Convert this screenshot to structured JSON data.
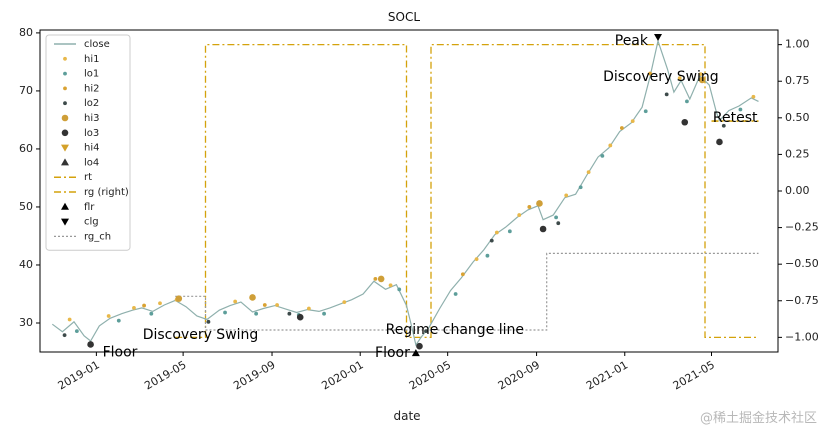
{
  "watermark": "@稀土掘金技术社区",
  "chart_data": {
    "type": "line",
    "title": "SOCL",
    "xlabel": "date",
    "ylabel": "",
    "ylabel_right": "",
    "grid": false,
    "legend_position": "upper-left",
    "x_range": [
      "2018-10-15",
      "2021-08-01"
    ],
    "ylim": [
      25,
      80.5
    ],
    "ylim_right": [
      -1.1,
      1.1
    ],
    "x_ticks": [
      {
        "value": "2019-01-01",
        "label": "2019-01"
      },
      {
        "value": "2019-05-01",
        "label": "2019-05"
      },
      {
        "value": "2019-09-01",
        "label": "2019-09"
      },
      {
        "value": "2020-01-01",
        "label": "2020-01"
      },
      {
        "value": "2020-05-01",
        "label": "2020-05"
      },
      {
        "value": "2020-09-01",
        "label": "2020-09"
      },
      {
        "value": "2021-01-01",
        "label": "2021-01"
      },
      {
        "value": "2021-05-01",
        "label": "2021-05"
      }
    ],
    "y_ticks": [
      30,
      40,
      50,
      60,
      70,
      80
    ],
    "y_ticks_right": [
      "-1.00",
      "-0.75",
      "-0.50",
      "-0.25",
      "0.00",
      "0.25",
      "0.50",
      "0.75",
      "1.00"
    ],
    "legend": [
      {
        "label": "close",
        "color": "#8fb0ad",
        "kind": "line"
      },
      {
        "label": "hi1",
        "color": "#e8b84a",
        "kind": "dot"
      },
      {
        "label": "lo1",
        "color": "#5d9e9a",
        "kind": "dot"
      },
      {
        "label": "hi2",
        "color": "#d9a232",
        "kind": "dot"
      },
      {
        "label": "lo2",
        "color": "#3d4a4a",
        "kind": "dot"
      },
      {
        "label": "hi3",
        "color": "#cf9f38",
        "kind": "bigdot"
      },
      {
        "label": "lo3",
        "color": "#333333",
        "kind": "bigdot"
      },
      {
        "label": "hi4",
        "color": "#d4a12a",
        "kind": "tri-down"
      },
      {
        "label": "lo4",
        "color": "#333333",
        "kind": "tri-up"
      },
      {
        "label": "rt",
        "color": "#d4a20c",
        "kind": "dashdot"
      },
      {
        "label": "rg (right)",
        "color": "#d4a20c",
        "kind": "dashdot"
      },
      {
        "label": "flr",
        "color": "#000000",
        "kind": "tri-up"
      },
      {
        "label": "clg",
        "color": "#000000",
        "kind": "tri-down"
      },
      {
        "label": "rg_ch",
        "color": "#999999",
        "kind": "dotted"
      }
    ],
    "series": [
      {
        "name": "close",
        "axis": "left",
        "points": [
          [
            "2018-11-01",
            29.8
          ],
          [
            "2018-11-15",
            28.5
          ],
          [
            "2018-12-01",
            30.2
          ],
          [
            "2018-12-15",
            27.8
          ],
          [
            "2018-12-24",
            26.9
          ],
          [
            "2019-01-05",
            29.5
          ],
          [
            "2019-01-20",
            30.8
          ],
          [
            "2019-02-05",
            31.6
          ],
          [
            "2019-02-20",
            32.2
          ],
          [
            "2019-03-05",
            32.6
          ],
          [
            "2019-03-20",
            32.0
          ],
          [
            "2019-04-05",
            33.1
          ],
          [
            "2019-04-20",
            33.9
          ],
          [
            "2019-05-05",
            32.8
          ],
          [
            "2019-05-20",
            31.2
          ],
          [
            "2019-06-03",
            30.6
          ],
          [
            "2019-06-20",
            32.2
          ],
          [
            "2019-07-05",
            33.0
          ],
          [
            "2019-07-20",
            33.6
          ],
          [
            "2019-08-05",
            31.9
          ],
          [
            "2019-08-20",
            32.5
          ],
          [
            "2019-09-05",
            33.0
          ],
          [
            "2019-09-20",
            32.4
          ],
          [
            "2019-10-05",
            31.8
          ],
          [
            "2019-10-20",
            32.3
          ],
          [
            "2019-11-05",
            32.0
          ],
          [
            "2019-11-20",
            32.6
          ],
          [
            "2019-12-05",
            33.3
          ],
          [
            "2019-12-20",
            34.0
          ],
          [
            "2020-01-05",
            35.0
          ],
          [
            "2020-01-20",
            37.2
          ],
          [
            "2020-02-05",
            35.8
          ],
          [
            "2020-02-20",
            36.6
          ],
          [
            "2020-03-05",
            33.0
          ],
          [
            "2020-03-12",
            29.5
          ],
          [
            "2020-03-18",
            26.2
          ],
          [
            "2020-03-25",
            27.5
          ],
          [
            "2020-04-05",
            29.2
          ],
          [
            "2020-04-20",
            32.5
          ],
          [
            "2020-05-05",
            35.6
          ],
          [
            "2020-05-20",
            37.8
          ],
          [
            "2020-06-05",
            40.5
          ],
          [
            "2020-06-20",
            42.6
          ],
          [
            "2020-07-05",
            45.2
          ],
          [
            "2020-07-20",
            46.5
          ],
          [
            "2020-08-05",
            48.2
          ],
          [
            "2020-08-20",
            49.5
          ],
          [
            "2020-09-03",
            50.2
          ],
          [
            "2020-09-10",
            47.8
          ],
          [
            "2020-09-24",
            48.6
          ],
          [
            "2020-10-10",
            51.6
          ],
          [
            "2020-10-25",
            52.2
          ],
          [
            "2020-11-10",
            55.6
          ],
          [
            "2020-11-25",
            58.6
          ],
          [
            "2020-12-10",
            60.2
          ],
          [
            "2020-12-25",
            63.0
          ],
          [
            "2021-01-10",
            64.5
          ],
          [
            "2021-01-25",
            67.2
          ],
          [
            "2021-02-05",
            72.5
          ],
          [
            "2021-02-16",
            78.6
          ],
          [
            "2021-03-01",
            73.8
          ],
          [
            "2021-03-10",
            69.8
          ],
          [
            "2021-03-20",
            71.8
          ],
          [
            "2021-04-01",
            68.6
          ],
          [
            "2021-04-15",
            72.6
          ],
          [
            "2021-04-28",
            71.0
          ],
          [
            "2021-05-08",
            66.2
          ],
          [
            "2021-05-12",
            64.9
          ],
          [
            "2021-05-25",
            66.6
          ],
          [
            "2021-06-08",
            67.4
          ],
          [
            "2021-06-25",
            68.8
          ],
          [
            "2021-07-05",
            68.2
          ]
        ]
      },
      {
        "name": "rt",
        "axis": "left",
        "points": [
          [
            "2021-05-01",
            64.8
          ],
          [
            "2021-07-05",
            64.8
          ]
        ]
      },
      {
        "name": "rg (right)",
        "axis": "right",
        "points": [
          [
            "2019-04-20",
            -1.0
          ],
          [
            "2019-06-01",
            -1.0
          ],
          [
            "2019-06-01",
            1.0
          ],
          [
            "2020-03-05",
            1.0
          ],
          [
            "2020-03-05",
            -1.0
          ],
          [
            "2020-04-08",
            -1.0
          ],
          [
            "2020-04-08",
            1.0
          ],
          [
            "2021-04-22",
            1.0
          ],
          [
            "2021-04-22",
            -1.0
          ],
          [
            "2021-07-05",
            -1.0
          ]
        ]
      },
      {
        "name": "rg_ch",
        "axis": "left",
        "points": [
          [
            "2019-04-20",
            34.6
          ],
          [
            "2019-06-01",
            34.6
          ],
          [
            "2019-06-01",
            28.8
          ],
          [
            "2020-09-15",
            28.8
          ],
          [
            "2020-09-15",
            42.0
          ],
          [
            "2021-07-05",
            42.0
          ]
        ]
      }
    ],
    "markers": [
      {
        "name": "hi1",
        "kind": "dot",
        "points": [
          [
            "2018-11-25",
            30.6
          ],
          [
            "2019-01-18",
            31.2
          ],
          [
            "2019-02-22",
            32.6
          ],
          [
            "2019-03-30",
            33.4
          ],
          [
            "2019-04-22",
            34.0
          ],
          [
            "2019-07-12",
            33.7
          ],
          [
            "2019-09-08",
            33.1
          ],
          [
            "2019-10-22",
            32.5
          ],
          [
            "2019-12-10",
            33.6
          ],
          [
            "2020-02-12",
            36.5
          ],
          [
            "2020-06-10",
            41.0
          ],
          [
            "2020-07-08",
            45.6
          ],
          [
            "2020-08-08",
            48.6
          ],
          [
            "2020-10-12",
            52.0
          ],
          [
            "2020-11-12",
            56.0
          ],
          [
            "2020-12-12",
            60.6
          ],
          [
            "2021-01-12",
            64.8
          ],
          [
            "2021-03-18",
            72.2
          ],
          [
            "2021-04-16",
            72.9
          ],
          [
            "2021-06-28",
            69.0
          ]
        ]
      },
      {
        "name": "lo1",
        "kind": "dot",
        "points": [
          [
            "2018-12-05",
            28.6
          ],
          [
            "2019-02-01",
            30.4
          ],
          [
            "2019-03-18",
            31.6
          ],
          [
            "2019-06-28",
            31.8
          ],
          [
            "2019-08-10",
            31.6
          ],
          [
            "2019-10-08",
            31.4
          ],
          [
            "2019-11-12",
            31.6
          ],
          [
            "2020-02-24",
            35.8
          ],
          [
            "2020-05-12",
            35.0
          ],
          [
            "2020-06-25",
            41.6
          ],
          [
            "2020-07-26",
            45.8
          ],
          [
            "2020-09-28",
            48.2
          ],
          [
            "2020-11-01",
            53.4
          ],
          [
            "2020-12-01",
            58.8
          ],
          [
            "2021-01-30",
            66.5
          ],
          [
            "2021-03-28",
            68.2
          ],
          [
            "2021-06-10",
            66.8
          ]
        ]
      },
      {
        "name": "hi2",
        "kind": "dot",
        "points": [
          [
            "2019-03-08",
            33.0
          ],
          [
            "2019-08-22",
            33.1
          ],
          [
            "2020-01-22",
            37.6
          ],
          [
            "2020-05-22",
            38.4
          ],
          [
            "2020-08-22",
            50.0
          ],
          [
            "2020-12-28",
            63.6
          ],
          [
            "2021-02-05",
            73.0
          ]
        ]
      },
      {
        "name": "lo2",
        "kind": "dot",
        "points": [
          [
            "2018-11-18",
            27.9
          ],
          [
            "2019-06-05",
            30.2
          ],
          [
            "2019-09-25",
            31.6
          ],
          [
            "2020-04-01",
            28.6
          ],
          [
            "2020-07-01",
            44.2
          ],
          [
            "2020-10-01",
            47.2
          ],
          [
            "2021-02-28",
            69.4
          ],
          [
            "2021-05-18",
            64.0
          ]
        ]
      },
      {
        "name": "hi3",
        "kind": "bigdot",
        "points": [
          [
            "2019-04-25",
            34.2
          ],
          [
            "2019-08-05",
            34.4
          ],
          [
            "2020-01-30",
            37.6
          ],
          [
            "2020-09-05",
            50.6
          ],
          [
            "2021-04-18",
            71.9
          ]
        ]
      },
      {
        "name": "lo3",
        "kind": "bigdot",
        "points": [
          [
            "2018-12-24",
            26.3
          ],
          [
            "2019-10-10",
            31.0
          ],
          [
            "2020-03-23",
            26.0
          ],
          [
            "2020-09-10",
            46.2
          ],
          [
            "2021-03-25",
            64.6
          ],
          [
            "2021-05-12",
            61.2
          ]
        ]
      },
      {
        "name": "clg",
        "kind": "tri-down",
        "points": [
          [
            "2021-02-16",
            79.3
          ]
        ]
      },
      {
        "name": "flr",
        "kind": "tri-up",
        "points": [
          [
            "2020-03-18",
            24.8
          ]
        ]
      }
    ],
    "annotations": [
      {
        "text": "Floor",
        "x": "2018-12-24",
        "y": 26.3,
        "dx": 12,
        "dy": 8,
        "anchor": "start"
      },
      {
        "text": "Discovery Swing",
        "x": "2019-05-25",
        "y": 30.2,
        "dx": 0,
        "dy": 13,
        "anchor": "middle"
      },
      {
        "text": "Regime change line",
        "x": "2020-01-25",
        "y": 28.8,
        "dx": 8,
        "dy": 0,
        "anchor": "start"
      },
      {
        "text": "Floor",
        "x": "2020-03-18",
        "y": 24.8,
        "dx": -6,
        "dy": 0,
        "anchor": "end"
      },
      {
        "text": "Peak",
        "x": "2021-02-16",
        "y": 79.3,
        "dx": -10,
        "dy": 4,
        "anchor": "end"
      },
      {
        "text": "Discovery Swing",
        "x": "2021-02-20",
        "y": 72.4,
        "dx": 0,
        "dy": 0,
        "anchor": "middle"
      },
      {
        "text": "Retest",
        "x": "2021-05-20",
        "y": 64.8,
        "dx": 10,
        "dy": -3,
        "anchor": "middle"
      }
    ]
  }
}
